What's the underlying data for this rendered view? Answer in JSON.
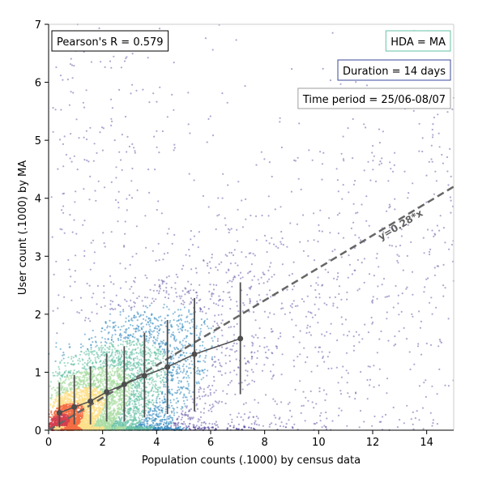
{
  "chart_data": {
    "type": "scatter",
    "xlabel": "Population counts (.1000) by census data",
    "ylabel": "User count (.1000) by MA",
    "xlim": [
      0,
      15
    ],
    "ylim": [
      0,
      7
    ],
    "xticks": [
      0,
      2,
      4,
      6,
      8,
      10,
      12,
      14
    ],
    "yticks": [
      0,
      1,
      2,
      3,
      4,
      5,
      6,
      7
    ],
    "grid": false,
    "annotations": {
      "pearson": "Pearson's R = 0.579",
      "hda": "HDA = MA",
      "duration": "Duration = 14 days",
      "period": "Time period = 25/06-08/07"
    },
    "annotation_colors": {
      "pearson": "#000000",
      "hda": "#66c2a5",
      "duration": "#3b4a99",
      "period": "#9e9e9e"
    },
    "fit_line": {
      "label": "y=0.28*x",
      "slope": 0.28,
      "color": "#666666"
    },
    "binned_means": [
      {
        "x": 0.4,
        "y": 0.3,
        "y_low": 0.05,
        "y_high": 0.82
      },
      {
        "x": 0.95,
        "y": 0.4,
        "y_low": 0.1,
        "y_high": 0.95
      },
      {
        "x": 1.55,
        "y": 0.5,
        "y_low": 0.1,
        "y_high": 1.1
      },
      {
        "x": 2.15,
        "y": 0.66,
        "y_low": 0.15,
        "y_high": 1.32
      },
      {
        "x": 2.8,
        "y": 0.79,
        "y_low": 0.15,
        "y_high": 1.45
      },
      {
        "x": 3.55,
        "y": 0.94,
        "y_low": 0.22,
        "y_high": 1.68
      },
      {
        "x": 4.4,
        "y": 1.09,
        "y_low": 0.28,
        "y_high": 1.9
      },
      {
        "x": 5.4,
        "y": 1.31,
        "y_low": 0.33,
        "y_high": 2.28
      },
      {
        "x": 7.1,
        "y": 1.58,
        "y_low": 0.62,
        "y_high": 2.55
      }
    ],
    "point_colors": {
      "sparse": "#5e4fa2",
      "low": "#3288bd",
      "mid": "#66c2a5",
      "midhigh": "#abdda4",
      "high": "#fee08b",
      "veryhigh": "#f46d43",
      "peak": "#d53e4f"
    }
  }
}
